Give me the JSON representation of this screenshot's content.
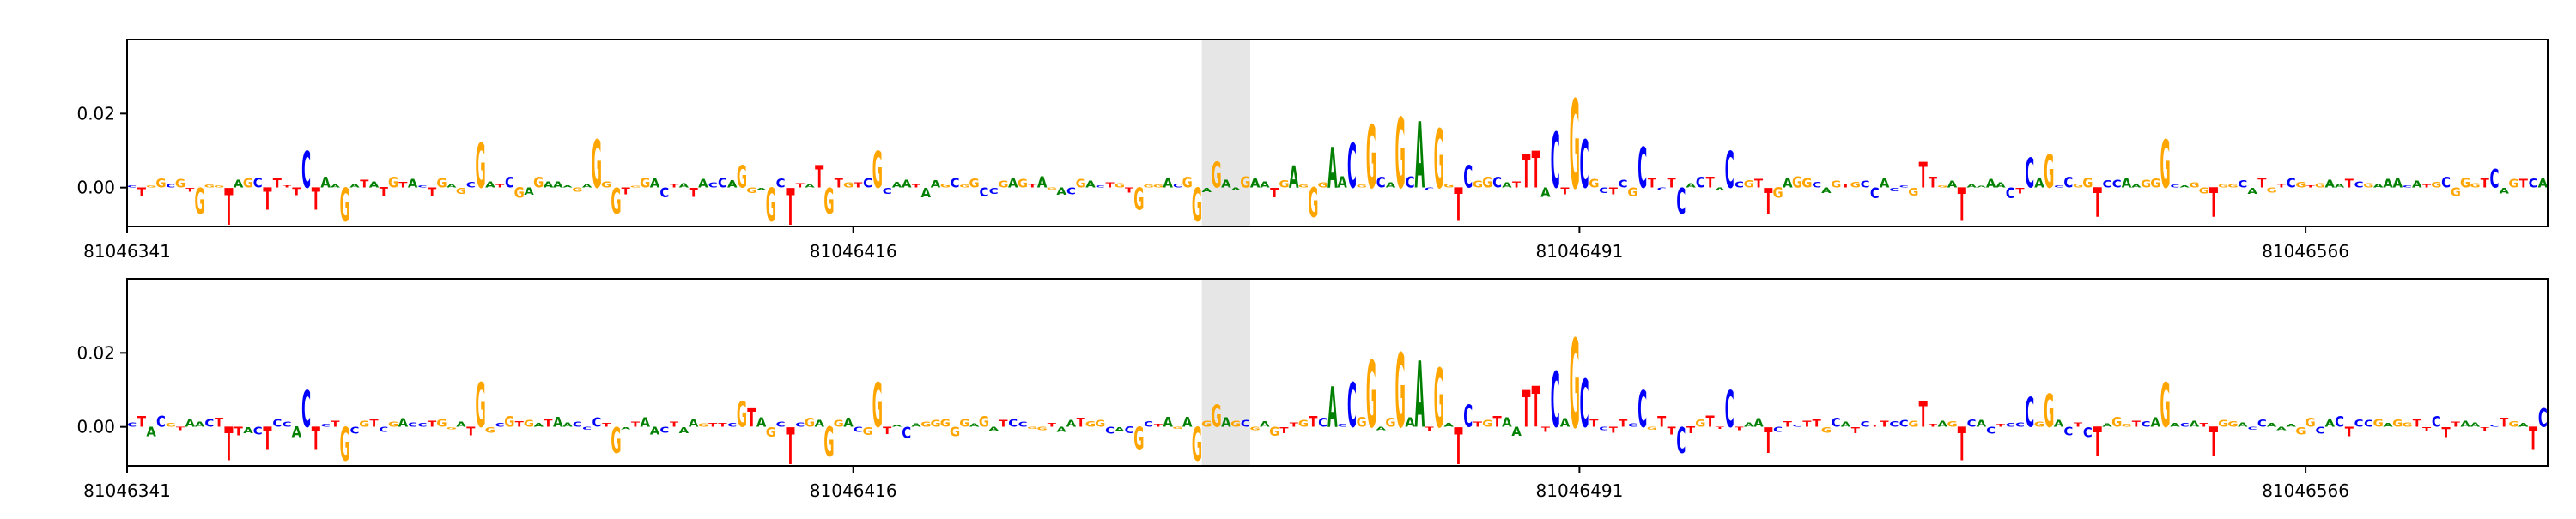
{
  "chart_data": [
    {
      "type": "sequence-logo",
      "title": "",
      "xlabel": "",
      "ylabel": "",
      "x_range": [
        81046341,
        81046591
      ],
      "ylim": [
        -0.0105,
        0.04
      ],
      "yticks": [
        0.0,
        0.02
      ],
      "ytick_labels": [
        "0.00",
        "0.02"
      ],
      "xticks": [
        81046341,
        81046416,
        81046491,
        81046566
      ],
      "xtick_labels": [
        "81046341",
        "81046416",
        "81046491",
        "81046566"
      ],
      "highlight": [
        81046452,
        81046457
      ],
      "grid": false,
      "letters": [
        [
          "C",
          81046359,
          0.01
        ],
        [
          "G",
          81046377,
          0.012
        ],
        [
          "G",
          81046389,
          0.013
        ],
        [
          "G",
          81046404,
          0.006
        ],
        [
          "T",
          81046412,
          0.006
        ],
        [
          "G",
          81046418,
          0.01
        ],
        [
          "G",
          81046453,
          0.007
        ],
        [
          "A",
          81046461,
          0.006
        ],
        [
          "A",
          81046465,
          0.011
        ],
        [
          "C",
          81046467,
          0.012
        ],
        [
          "G",
          81046469,
          0.017
        ],
        [
          "G",
          81046472,
          0.019
        ],
        [
          "A",
          81046474,
          0.018
        ],
        [
          "G",
          81046476,
          0.016
        ],
        [
          "C",
          81046479,
          0.006
        ],
        [
          "T",
          81046485,
          0.009
        ],
        [
          "T",
          81046486,
          0.01
        ],
        [
          "C",
          81046488,
          0.015
        ],
        [
          "G",
          81046490,
          0.024
        ],
        [
          "C",
          81046491,
          0.013
        ],
        [
          "C",
          81046497,
          0.011
        ],
        [
          "C",
          81046506,
          0.01
        ],
        [
          "T",
          81046526,
          0.007
        ],
        [
          "C",
          81046537,
          0.008
        ],
        [
          "G",
          81046539,
          0.009
        ],
        [
          "G",
          81046551,
          0.013
        ],
        [
          "C",
          81046585,
          0.005
        ]
      ],
      "neg_letters": [
        [
          "G",
          81046348,
          -0.007
        ],
        [
          "T",
          81046351,
          -0.01
        ],
        [
          "T",
          81046355,
          -0.006
        ],
        [
          "T",
          81046360,
          -0.006
        ],
        [
          "G",
          81046363,
          -0.009
        ],
        [
          "G",
          81046391,
          -0.007
        ],
        [
          "G",
          81046407,
          -0.009
        ],
        [
          "T",
          81046409,
          -0.01
        ],
        [
          "G",
          81046413,
          -0.007
        ],
        [
          "G",
          81046445,
          -0.006
        ],
        [
          "G",
          81046451,
          -0.009
        ],
        [
          "G",
          81046463,
          -0.008
        ],
        [
          "T",
          81046478,
          -0.009
        ],
        [
          "C",
          81046501,
          -0.007
        ],
        [
          "T",
          81046510,
          -0.007
        ],
        [
          "T",
          81046530,
          -0.009
        ],
        [
          "T",
          81046544,
          -0.008
        ],
        [
          "T",
          81046556,
          -0.008
        ]
      ]
    },
    {
      "type": "sequence-logo",
      "title": "",
      "xlabel": "",
      "ylabel": "",
      "x_range": [
        81046341,
        81046591
      ],
      "ylim": [
        -0.0105,
        0.04
      ],
      "yticks": [
        0.0,
        0.02
      ],
      "ytick_labels": [
        "0.00",
        "0.02"
      ],
      "xticks": [
        81046341,
        81046416,
        81046491,
        81046566
      ],
      "xtick_labels": [
        "81046341",
        "81046416",
        "81046491",
        "81046566"
      ],
      "highlight": [
        81046452,
        81046457
      ],
      "grid": false,
      "letters": [
        [
          "C",
          81046359,
          0.01
        ],
        [
          "G",
          81046377,
          0.012
        ],
        [
          "G",
          81046404,
          0.007
        ],
        [
          "T",
          81046405,
          0.005
        ],
        [
          "G",
          81046418,
          0.012
        ],
        [
          "G",
          81046453,
          0.006
        ],
        [
          "A",
          81046465,
          0.011
        ],
        [
          "C",
          81046467,
          0.012
        ],
        [
          "G",
          81046469,
          0.018
        ],
        [
          "G",
          81046472,
          0.02
        ],
        [
          "A",
          81046474,
          0.018
        ],
        [
          "G",
          81046476,
          0.016
        ],
        [
          "C",
          81046479,
          0.006
        ],
        [
          "T",
          81046485,
          0.01
        ],
        [
          "T",
          81046486,
          0.011
        ],
        [
          "C",
          81046488,
          0.015
        ],
        [
          "G",
          81046490,
          0.024
        ],
        [
          "C",
          81046491,
          0.013
        ],
        [
          "C",
          81046497,
          0.01
        ],
        [
          "C",
          81046506,
          0.01
        ],
        [
          "T",
          81046526,
          0.007
        ],
        [
          "C",
          81046537,
          0.008
        ],
        [
          "G",
          81046539,
          0.009
        ],
        [
          "G",
          81046551,
          0.012
        ],
        [
          "C",
          81046590,
          0.005
        ]
      ],
      "neg_letters": [
        [
          "T",
          81046351,
          -0.009
        ],
        [
          "T",
          81046355,
          -0.006
        ],
        [
          "T",
          81046360,
          -0.006
        ],
        [
          "G",
          81046363,
          -0.009
        ],
        [
          "G",
          81046391,
          -0.007
        ],
        [
          "T",
          81046409,
          -0.01
        ],
        [
          "G",
          81046413,
          -0.008
        ],
        [
          "G",
          81046445,
          -0.006
        ],
        [
          "G",
          81046451,
          -0.009
        ],
        [
          "T",
          81046478,
          -0.01
        ],
        [
          "C",
          81046501,
          -0.007
        ],
        [
          "T",
          81046510,
          -0.007
        ],
        [
          "T",
          81046530,
          -0.009
        ],
        [
          "T",
          81046544,
          -0.008
        ],
        [
          "T",
          81046556,
          -0.008
        ],
        [
          "T",
          81046589,
          -0.006
        ]
      ]
    }
  ],
  "colors": {
    "A": "#008000",
    "C": "#0000ff",
    "G": "#ffa500",
    "T": "#ff0000",
    "highlight": "#e6e6e6",
    "axis": "#000000"
  }
}
